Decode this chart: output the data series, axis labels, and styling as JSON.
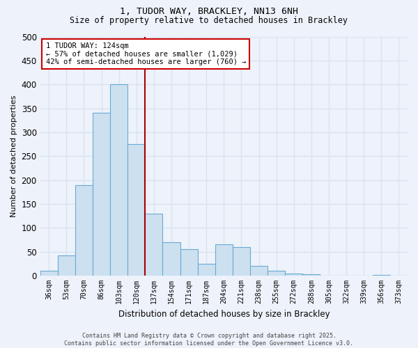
{
  "title1": "1, TUDOR WAY, BRACKLEY, NN13 6NH",
  "title2": "Size of property relative to detached houses in Brackley",
  "xlabel": "Distribution of detached houses by size in Brackley",
  "ylabel": "Number of detached properties",
  "categories": [
    "36sqm",
    "53sqm",
    "70sqm",
    "86sqm",
    "103sqm",
    "120sqm",
    "137sqm",
    "154sqm",
    "171sqm",
    "187sqm",
    "204sqm",
    "221sqm",
    "238sqm",
    "255sqm",
    "272sqm",
    "288sqm",
    "305sqm",
    "322sqm",
    "339sqm",
    "356sqm",
    "373sqm"
  ],
  "values": [
    10,
    43,
    190,
    340,
    400,
    275,
    130,
    70,
    55,
    25,
    65,
    60,
    20,
    10,
    5,
    3,
    0,
    0,
    0,
    2,
    0
  ],
  "bar_color": "#cce0f0",
  "bar_edge_color": "#6aaad4",
  "vline_x": 5.5,
  "vline_color": "#aa0000",
  "annotation_text": "1 TUDOR WAY: 124sqm\n← 57% of detached houses are smaller (1,029)\n42% of semi-detached houses are larger (760) →",
  "annotation_box_color": "#ffffff",
  "annotation_box_edge": "#cc0000",
  "background_color": "#eef2fa",
  "grid_color": "#d8e4f0",
  "footer": "Contains HM Land Registry data © Crown copyright and database right 2025.\nContains public sector information licensed under the Open Government Licence v3.0.",
  "ylim": [
    0,
    500
  ],
  "yticks": [
    0,
    50,
    100,
    150,
    200,
    250,
    300,
    350,
    400,
    450,
    500
  ]
}
